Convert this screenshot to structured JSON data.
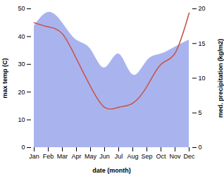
{
  "chart_data": {
    "type": "line",
    "categories": [
      "Jan",
      "Feb",
      "Mar",
      "Apr",
      "May",
      "Jun",
      "Jul",
      "Aug",
      "Sep",
      "Oct",
      "Nov",
      "Dec"
    ],
    "x_label": "date (month)",
    "y_label": "max temp (C)",
    "y2_label": "med. precipitation (kg/m2)",
    "series": [
      {
        "type": "area",
        "axis": "y2",
        "color": "#a9b4ef",
        "values": [
          17.5,
          19.5,
          18,
          15.5,
          14.2,
          11.5,
          13.5,
          10.5,
          12.5,
          13.5,
          14.5,
          15.5
        ]
      },
      {
        "type": "line",
        "color": "#c8574f",
        "values": [
          45,
          43.5,
          41,
          32,
          22,
          14.5,
          14.5,
          16,
          22,
          30,
          34,
          48.5
        ]
      }
    ],
    "ylim": [
      0,
      50
    ],
    "yticks": [
      0,
      10,
      20,
      30,
      40,
      50
    ],
    "y2lim": [
      0,
      20
    ],
    "y2ticks": [
      0,
      5,
      10,
      15,
      20
    ]
  }
}
